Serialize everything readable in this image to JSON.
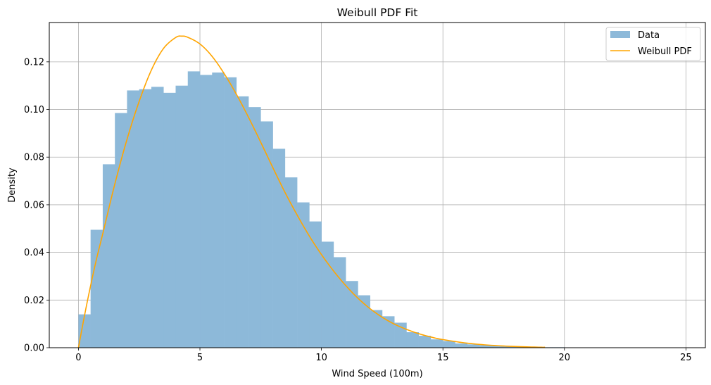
{
  "chart_data": {
    "type": "bar",
    "title": "Weibull PDF Fit",
    "xlabel": "Wind Speed (100m)",
    "ylabel": "Density",
    "xlim": [
      -1.2,
      25.8
    ],
    "ylim": [
      0,
      0.1365
    ],
    "grid": true,
    "legend_position": "top-right",
    "x_ticks": [
      0,
      5,
      10,
      15,
      20,
      25
    ],
    "y_ticks": [
      0.0,
      0.02,
      0.04,
      0.06,
      0.08,
      0.1,
      0.12
    ],
    "x_tick_labels": [
      "0",
      "5",
      "10",
      "15",
      "20",
      "25"
    ],
    "y_tick_labels": [
      "0.00",
      "0.02",
      "0.04",
      "0.06",
      "0.08",
      "0.10",
      "0.12"
    ],
    "histogram": {
      "name": "Data",
      "color": "#8db9d9",
      "bin_start": 0,
      "bin_width": 0.5,
      "values": [
        0.014,
        0.0495,
        0.077,
        0.0985,
        0.108,
        0.1085,
        0.1095,
        0.107,
        0.11,
        0.116,
        0.1145,
        0.1155,
        0.1135,
        0.1055,
        0.101,
        0.095,
        0.0835,
        0.0715,
        0.061,
        0.053,
        0.0445,
        0.038,
        0.028,
        0.022,
        0.0158,
        0.0132,
        0.0105,
        0.0065,
        0.005,
        0.0035,
        0.0028,
        0.0018,
        0.0014,
        0.0011,
        0.0008,
        0.0005,
        0.0004,
        0.0003,
        0.0002,
        0.0002,
        0.0001,
        0.0001,
        0.0001,
        0.0001,
        0.0001,
        0.0,
        0.0,
        0.0,
        0.0
      ]
    },
    "series": [
      {
        "name": "Weibull PDF",
        "color": "#ffa500",
        "type": "line",
        "x": [
          0,
          0.25,
          0.5,
          0.75,
          1,
          1.5,
          2,
          2.5,
          3,
          3.5,
          4,
          4.25,
          4.5,
          5,
          5.5,
          6,
          6.5,
          7,
          7.5,
          8,
          8.5,
          9,
          9.5,
          10,
          10.5,
          11,
          11.5,
          12,
          12.5,
          13,
          13.5,
          14,
          14.5,
          15,
          16,
          17,
          18,
          19,
          19.2
        ],
        "y": [
          0.0,
          0.0135,
          0.026,
          0.0375,
          0.0478,
          0.0688,
          0.0875,
          0.1034,
          0.1165,
          0.1256,
          0.1302,
          0.1308,
          0.1303,
          0.1275,
          0.1223,
          0.115,
          0.1064,
          0.0967,
          0.0863,
          0.0756,
          0.0652,
          0.0557,
          0.0469,
          0.0391,
          0.0322,
          0.0261,
          0.0208,
          0.0164,
          0.0128,
          0.0099,
          0.0077,
          0.0059,
          0.0045,
          0.0034,
          0.0019,
          0.001,
          0.0005,
          0.0002,
          0.0002
        ]
      }
    ],
    "legend": [
      {
        "label": "Data",
        "kind": "patch",
        "color": "#8db9d9"
      },
      {
        "label": "Weibull PDF",
        "kind": "line",
        "color": "#ffa500"
      }
    ]
  }
}
